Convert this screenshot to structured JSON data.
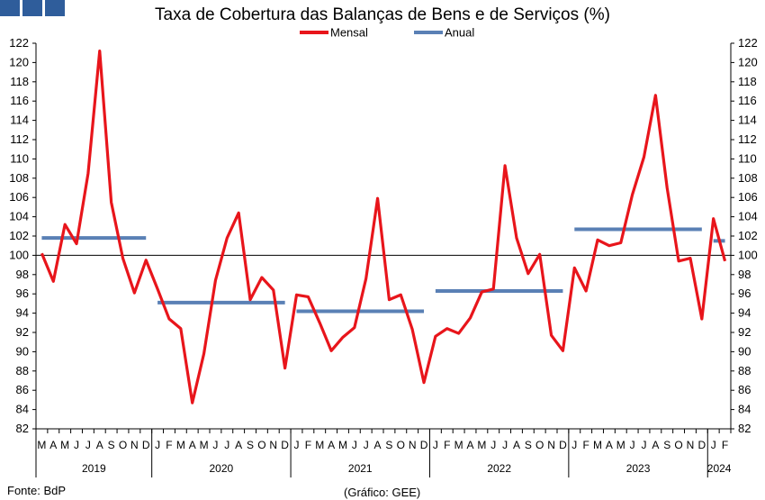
{
  "chart_data": {
    "type": "line",
    "title": "Taxa de Cobertura das Balanças de Bens e de Serviços (%)",
    "ylim": [
      82,
      122
    ],
    "yticks": [
      82,
      84,
      86,
      88,
      90,
      92,
      94,
      96,
      98,
      100,
      102,
      104,
      106,
      108,
      110,
      112,
      114,
      116,
      118,
      120,
      122
    ],
    "reference_line": 100,
    "months": [
      "M",
      "A",
      "M",
      "J",
      "J",
      "A",
      "S",
      "O",
      "N",
      "D",
      "J",
      "F",
      "M",
      "A",
      "M",
      "J",
      "J",
      "A",
      "S",
      "O",
      "N",
      "D",
      "J",
      "F",
      "M",
      "A",
      "M",
      "J",
      "J",
      "A",
      "S",
      "O",
      "N",
      "D",
      "J",
      "F",
      "M",
      "A",
      "M",
      "J",
      "J",
      "A",
      "S",
      "O",
      "N",
      "D",
      "J",
      "F",
      "M",
      "A",
      "M",
      "J",
      "J",
      "A",
      "S",
      "O",
      "N",
      "D",
      "J",
      "F"
    ],
    "years": [
      {
        "label": "2019",
        "start": 0,
        "end": 10
      },
      {
        "label": "2020",
        "start": 10,
        "end": 22
      },
      {
        "label": "2021",
        "start": 22,
        "end": 34
      },
      {
        "label": "2022",
        "start": 34,
        "end": 46
      },
      {
        "label": "2023",
        "start": 46,
        "end": 58
      },
      {
        "label": "2024",
        "start": 58,
        "end": 60
      }
    ],
    "legend": {
      "position": "top-center"
    },
    "series": [
      {
        "name": "Mensal",
        "color": "#e8151b",
        "values": [
          100.2,
          97.3,
          103.2,
          101.2,
          108.5,
          121.2,
          105.5,
          99.7,
          96.1,
          99.5,
          96.5,
          93.4,
          92.4,
          84.7,
          89.8,
          97.4,
          101.8,
          104.4,
          95.4,
          97.7,
          96.4,
          88.3,
          95.9,
          95.7,
          93.0,
          90.1,
          91.5,
          92.5,
          97.6,
          105.9,
          95.4,
          95.9,
          92.3,
          86.8,
          91.6,
          92.4,
          91.9,
          93.5,
          96.2,
          96.5,
          109.3,
          101.8,
          98.1,
          100.1,
          91.7,
          90.1,
          98.7,
          96.3,
          101.6,
          101.0,
          101.3,
          106.3,
          110.2,
          116.6,
          107.0,
          99.4,
          99.7,
          93.4,
          103.8,
          99.4
        ]
      },
      {
        "name": "Anual",
        "color": "#5a80b5",
        "segments": [
          {
            "start": 0,
            "end": 9,
            "value": 101.8
          },
          {
            "start": 10,
            "end": 21,
            "value": 95.1
          },
          {
            "start": 22,
            "end": 33,
            "value": 94.2
          },
          {
            "start": 34,
            "end": 45,
            "value": 96.3
          },
          {
            "start": 46,
            "end": 57,
            "value": 102.7
          },
          {
            "start": 58,
            "end": 59,
            "value": 101.5
          }
        ]
      }
    ]
  },
  "source": "Fonte: BdP",
  "credit": "(Gráfico: GEE)"
}
